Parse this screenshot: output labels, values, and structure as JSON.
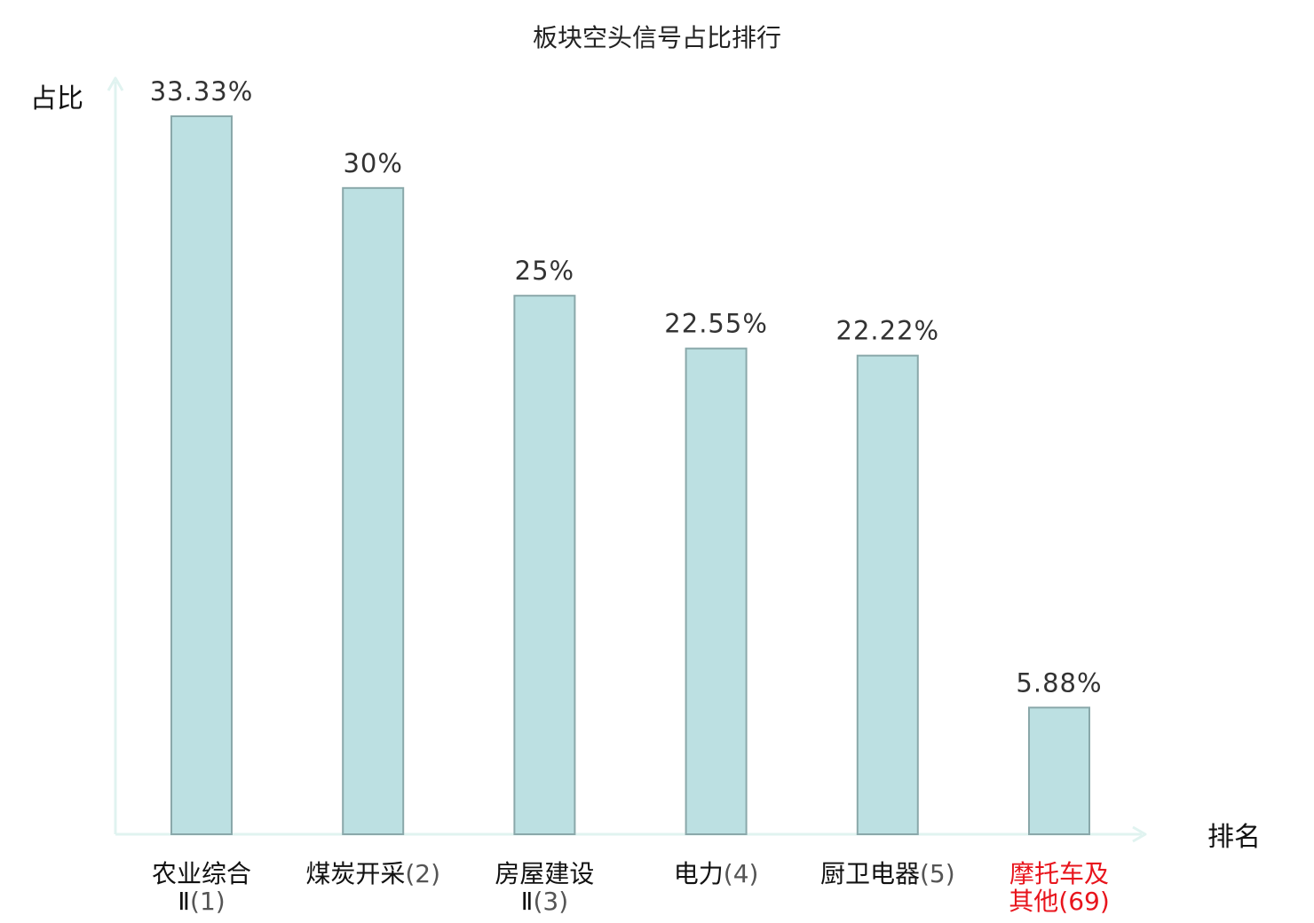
{
  "chart_data": {
    "type": "bar",
    "title": "板块空头信号占比排行",
    "ylabel": "占比",
    "xlabel": "排名",
    "ylim": [
      0,
      35
    ],
    "grid": false,
    "unit": "%",
    "categories": [
      {
        "lines": [
          "农业综合",
          "Ⅱ(1)"
        ],
        "value": 33.33,
        "label": "33.33%",
        "highlight": false
      },
      {
        "lines": [
          "煤炭开采(2)"
        ],
        "value": 30,
        "label": "30%",
        "highlight": false
      },
      {
        "lines": [
          "房屋建设",
          "Ⅱ(3)"
        ],
        "value": 25,
        "label": "25%",
        "highlight": false
      },
      {
        "lines": [
          "电力(4)"
        ],
        "value": 22.55,
        "label": "22.55%",
        "highlight": false
      },
      {
        "lines": [
          "厨卫电器(5)"
        ],
        "value": 22.22,
        "label": "22.22%",
        "highlight": false
      },
      {
        "lines": [
          "摩托车及",
          "其他(69)"
        ],
        "value": 5.88,
        "label": "5.88%",
        "highlight": true
      }
    ],
    "colors": {
      "bar_fill": "#bce0e2",
      "bar_stroke": "#8aa8aa",
      "axis": "#e0f3f0",
      "highlight": "#e8141c"
    }
  }
}
